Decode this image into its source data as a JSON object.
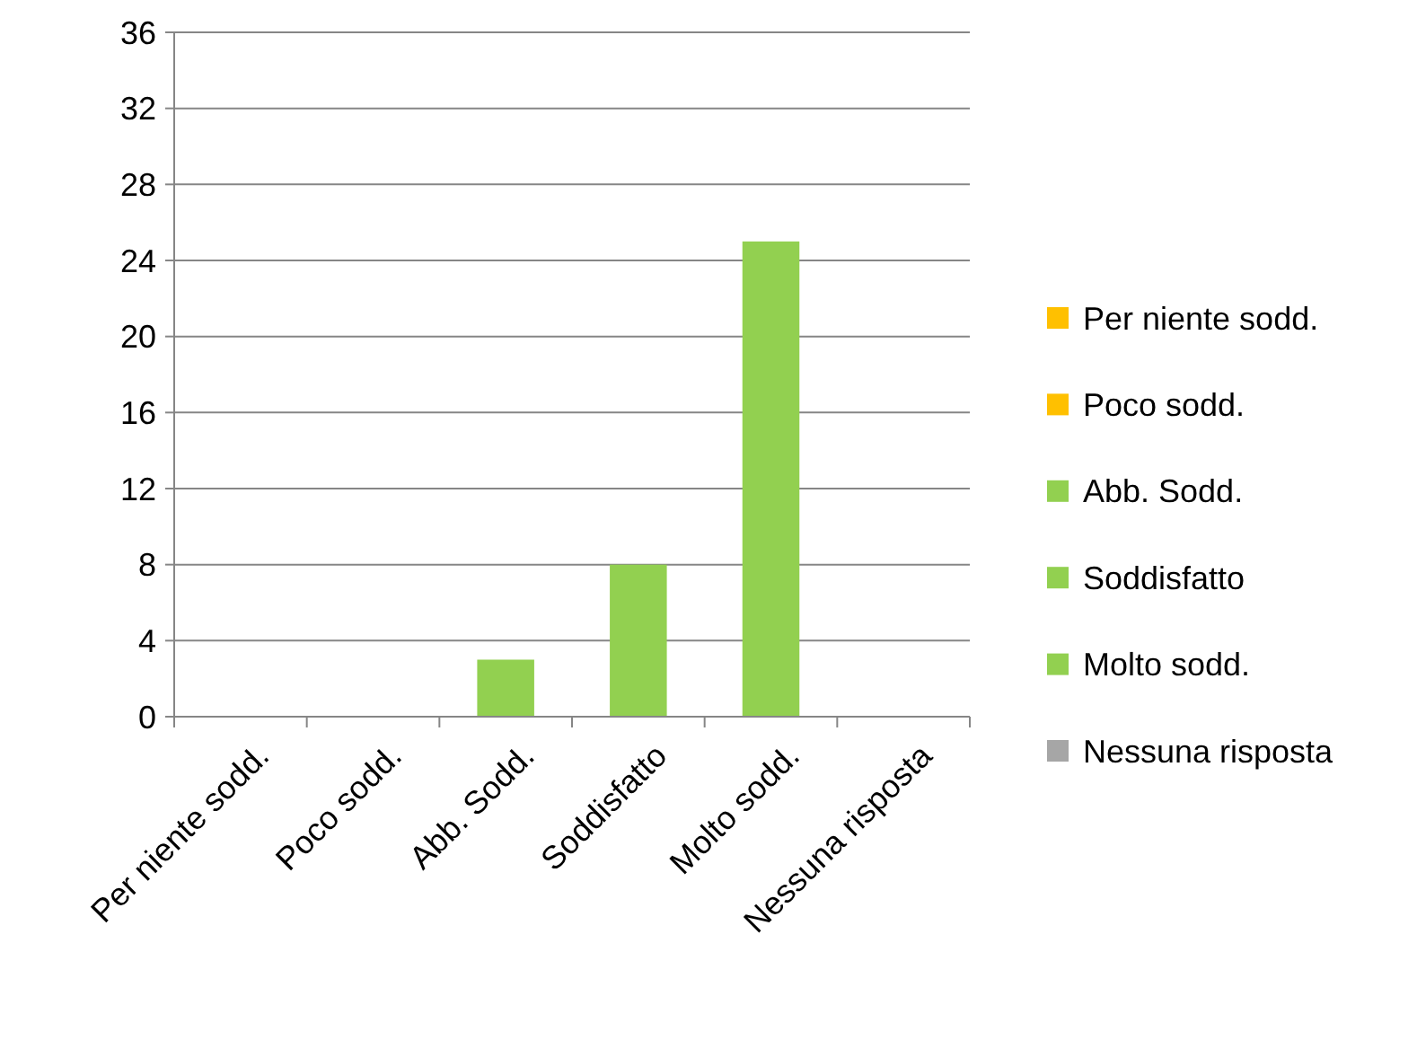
{
  "chart_data": {
    "type": "bar",
    "categories": [
      "Per niente sodd.",
      "Poco sodd.",
      "Abb. Sodd.",
      "Soddisfatto",
      "Molto sodd.",
      "Nessuna risposta"
    ],
    "series": [
      {
        "name": "Per niente sodd.",
        "color": "#ffc000",
        "values": [
          0,
          null,
          null,
          null,
          null,
          null
        ]
      },
      {
        "name": "Poco sodd.",
        "color": "#ffc000",
        "values": [
          null,
          0,
          null,
          null,
          null,
          null
        ]
      },
      {
        "name": "Abb. Sodd.",
        "color": "#92d050",
        "values": [
          null,
          null,
          3,
          null,
          null,
          null
        ]
      },
      {
        "name": "Soddisfatto",
        "color": "#92d050",
        "values": [
          null,
          null,
          null,
          8,
          null,
          null
        ]
      },
      {
        "name": "Molto sodd.",
        "color": "#92d050",
        "values": [
          null,
          null,
          null,
          null,
          25,
          null
        ]
      },
      {
        "name": "Nessuna risposta",
        "color": "#a6a6a6",
        "values": [
          null,
          null,
          null,
          null,
          null,
          0
        ]
      }
    ],
    "ylim": [
      0,
      36
    ],
    "yticks": [
      0,
      4,
      8,
      12,
      16,
      20,
      24,
      28,
      32,
      36
    ],
    "grid": "y",
    "legend": "right"
  }
}
